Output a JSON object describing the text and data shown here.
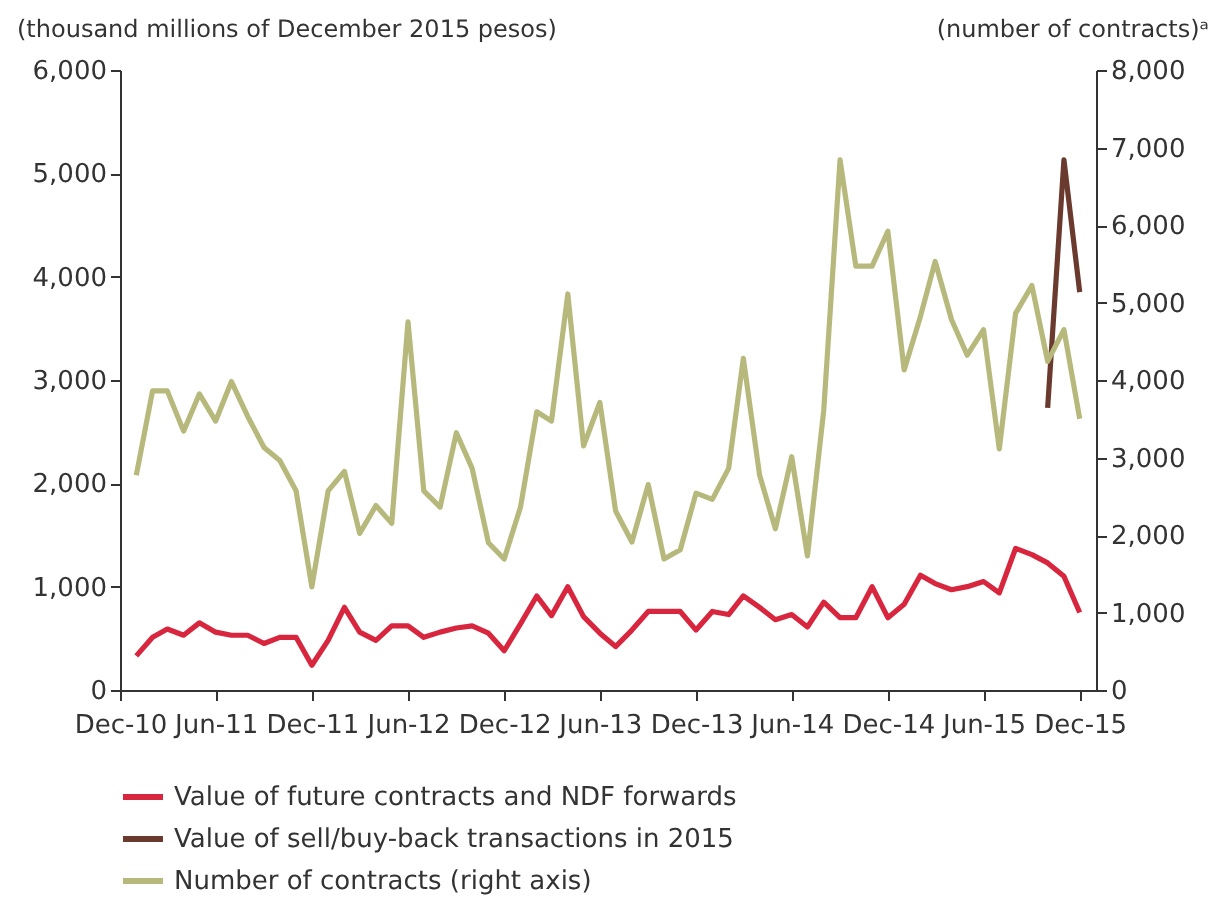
{
  "chart_data": {
    "type": "line",
    "ylabel": "(thousand millions of December 2015 pesos)",
    "y2label": "(number of contracts)ᵃ",
    "x": [
      "2011-01",
      "2011-02",
      "2011-03",
      "2011-04",
      "2011-05",
      "2011-06",
      "2011-07",
      "2011-08",
      "2011-09",
      "2011-10",
      "2011-11",
      "2011-12",
      "2012-01",
      "2012-02",
      "2012-03",
      "2012-04",
      "2012-05",
      "2012-06",
      "2012-07",
      "2012-08",
      "2012-09",
      "2012-10",
      "2012-11",
      "2012-12",
      "2013-01",
      "2013-02",
      "2013-03",
      "2013-04",
      "2013-05",
      "2013-06",
      "2013-07",
      "2013-08",
      "2013-09",
      "2013-10",
      "2013-11",
      "2013-12",
      "2014-01",
      "2014-02",
      "2014-03",
      "2014-04",
      "2014-05",
      "2014-06",
      "2014-07",
      "2014-08",
      "2014-09",
      "2014-10",
      "2014-11",
      "2014-12",
      "2015-01",
      "2015-02",
      "2015-03",
      "2015-04",
      "2015-05",
      "2015-06",
      "2015-07",
      "2015-08",
      "2015-09",
      "2015-10",
      "2015-11",
      "2015-12"
    ],
    "xlim": [
      "2010-12",
      "2016-01"
    ],
    "xticks": [
      {
        "value": "2010-12",
        "label": "Dec-10"
      },
      {
        "value": "2011-06",
        "label": "Jun-11"
      },
      {
        "value": "2011-12",
        "label": "Dec-11"
      },
      {
        "value": "2012-06",
        "label": "Jun-12"
      },
      {
        "value": "2012-12",
        "label": "Dec-12"
      },
      {
        "value": "2013-06",
        "label": "Jun-13"
      },
      {
        "value": "2013-12",
        "label": "Dec-13"
      },
      {
        "value": "2014-06",
        "label": "Jun-14"
      },
      {
        "value": "2014-12",
        "label": "Dec-14"
      },
      {
        "value": "2015-06",
        "label": "Jun-15"
      },
      {
        "value": "2015-12",
        "label": "Dec-15"
      }
    ],
    "ylim": [
      0,
      6000
    ],
    "yticks": [
      0,
      {
        "value": 1000,
        "label": "1,000"
      },
      {
        "value": 2000,
        "label": "2,000"
      },
      {
        "value": 3000,
        "label": "3,000"
      },
      {
        "value": 4000,
        "label": "4,000"
      },
      {
        "value": 5000,
        "label": "5,000"
      },
      {
        "value": 6000,
        "label": "6,000"
      }
    ],
    "y2lim": [
      0,
      8000
    ],
    "y2ticks": [
      0,
      {
        "value": 1000,
        "label": "1,000"
      },
      {
        "value": 2000,
        "label": "2,000"
      },
      {
        "value": 3000,
        "label": "3,000"
      },
      {
        "value": 4000,
        "label": "4,000"
      },
      {
        "value": 5000,
        "label": "5,000"
      },
      {
        "value": 6000,
        "label": "6,000"
      },
      {
        "value": 7000,
        "label": "7,000"
      },
      {
        "value": 8000,
        "label": "8,000"
      }
    ],
    "series": [
      {
        "name": "Value of future contracts and NDF forwards",
        "color": "#d7263d",
        "values": [
          330,
          510,
          590,
          530,
          650,
          560,
          530,
          530,
          450,
          510,
          510,
          240,
          480,
          800,
          560,
          480,
          620,
          620,
          510,
          560,
          600,
          620,
          550,
          380,
          640,
          910,
          720,
          1000,
          710,
          550,
          420,
          580,
          760,
          760,
          760,
          580,
          760,
          730,
          910,
          800,
          680,
          730,
          610,
          850,
          700,
          700,
          1000,
          700,
          830,
          1110,
          1030,
          970,
          1000,
          1050,
          940,
          1370,
          1310,
          1230,
          1100,
          750
        ]
      },
      {
        "name": "Value of sell/buy-back transactions in 2015",
        "color": "#6b3a2e",
        "values": [
          null,
          null,
          null,
          null,
          null,
          null,
          null,
          null,
          null,
          null,
          null,
          null,
          null,
          null,
          null,
          null,
          null,
          null,
          null,
          null,
          null,
          null,
          null,
          null,
          null,
          null,
          null,
          null,
          null,
          null,
          null,
          null,
          null,
          null,
          null,
          null,
          null,
          null,
          null,
          null,
          null,
          null,
          null,
          null,
          null,
          null,
          null,
          null,
          null,
          null,
          null,
          null,
          null,
          null,
          null,
          null,
          null,
          2730,
          5130,
          3850
        ]
      },
      {
        "name": "Number of contracts (right axis)",
        "color": "#b7b97c",
        "axis": "y2",
        "values": [
          2770,
          3860,
          3860,
          3340,
          3820,
          3470,
          3980,
          3530,
          3130,
          2960,
          2570,
          1330,
          2570,
          2820,
          2020,
          2380,
          2150,
          4750,
          2570,
          2360,
          3320,
          2860,
          1900,
          1690,
          2360,
          3590,
          3470,
          5110,
          3150,
          3710,
          2310,
          1910,
          2650,
          1690,
          1810,
          2540,
          2460,
          2860,
          4280,
          2770,
          2080,
          3010,
          1730,
          3610,
          6840,
          5470,
          5470,
          5920,
          4130,
          4820,
          5530,
          4780,
          4320,
          4650,
          3110,
          4860,
          5220,
          4240,
          4650,
          3500
        ]
      }
    ],
    "legend": "bottom",
    "grid": false
  }
}
